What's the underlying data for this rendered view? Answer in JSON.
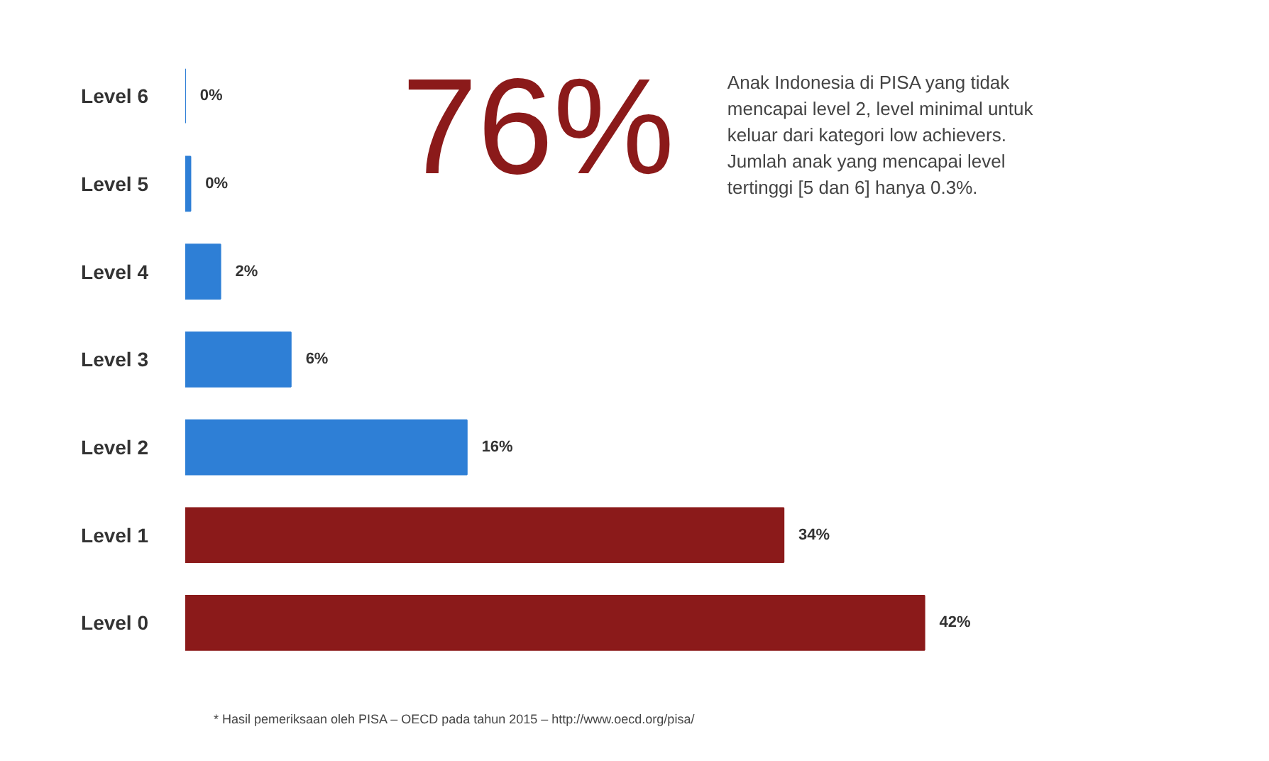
{
  "chart_data": {
    "type": "bar",
    "orientation": "horizontal",
    "categories": [
      "Level 6",
      "Level 5",
      "Level 4",
      "Level 3",
      "Level 2",
      "Level 1",
      "Level 0"
    ],
    "values": [
      0,
      0.3,
      2,
      6,
      16,
      34,
      42
    ],
    "colors": [
      "#2e7fd6",
      "#2e7fd6",
      "#2e7fd6",
      "#2e7fd6",
      "#2e7fd6",
      "#8b1a1a",
      "#8b1a1a"
    ],
    "value_labels": [
      "0%",
      "0%",
      "2%",
      "6%",
      "16%",
      "34%",
      "42%"
    ],
    "tick_labels": "y",
    "grid": false,
    "annotations": [
      "76%",
      "Anak Indonesia di PISA yang tidak mencapai level 2, level minimal untuk keluar dari kategori low achievers. Jumlah anak yang mencapai level tertinggi [5 dan 6] hanya 0.3%.",
      "* Hasil pemeriksaan oleh PISA – OECD pada tahun 2015 – http://www.oecd.org/pisa/"
    ]
  }
}
